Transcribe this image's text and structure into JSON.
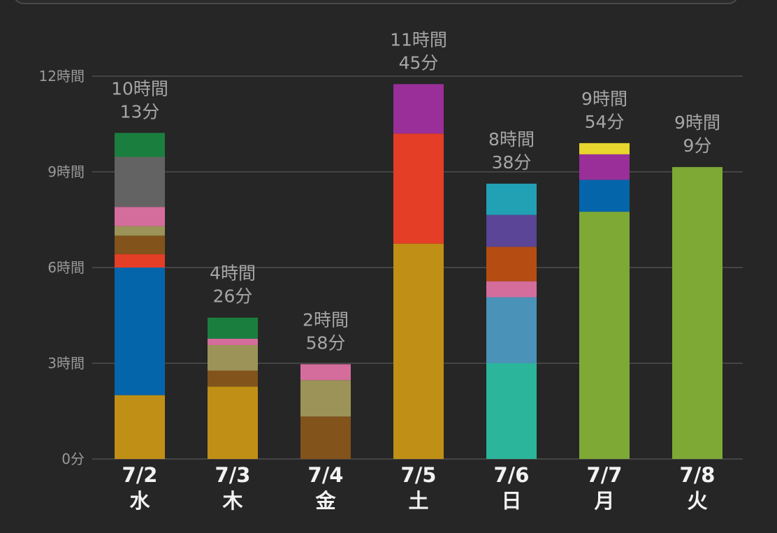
{
  "chart_data": {
    "type": "bar",
    "stacked": true,
    "y_unit": "hours",
    "ylim": [
      0,
      12
    ],
    "yticks": [
      {
        "value": 0,
        "label": "0分"
      },
      {
        "value": 3,
        "label": "3時間"
      },
      {
        "value": 6,
        "label": "6時間"
      },
      {
        "value": 9,
        "label": "9時間"
      },
      {
        "value": 12,
        "label": "12時間"
      }
    ],
    "grid": true,
    "categories": [
      {
        "date": "7/2",
        "day": "水",
        "total_line1": "10時間",
        "total_line2": "13分",
        "segments": [
          {
            "value": 2.0,
            "color": "#c08f15"
          },
          {
            "value": 4.0,
            "color": "#0565ab"
          },
          {
            "value": 0.42,
            "color": "#e53e26"
          },
          {
            "value": 0.58,
            "color": "#82531b"
          },
          {
            "value": 0.3,
            "color": "#9b9358"
          },
          {
            "value": 0.6,
            "color": "#d46d9c"
          },
          {
            "value": 1.57,
            "color": "#636363"
          },
          {
            "value": 0.75,
            "color": "#1a7f3e"
          }
        ]
      },
      {
        "date": "7/3",
        "day": "木",
        "total_line1": "4時間",
        "total_line2": "26分",
        "segments": [
          {
            "value": 2.27,
            "color": "#c08f15"
          },
          {
            "value": 0.5,
            "color": "#82531b"
          },
          {
            "value": 0.8,
            "color": "#9b9358"
          },
          {
            "value": 0.2,
            "color": "#d46d9c"
          },
          {
            "value": 0.66,
            "color": "#1a7f3e"
          }
        ]
      },
      {
        "date": "7/4",
        "day": "金",
        "total_line1": "2時間",
        "total_line2": "58分",
        "segments": [
          {
            "value": 1.33,
            "color": "#82531b"
          },
          {
            "value": 1.14,
            "color": "#9b9358"
          },
          {
            "value": 0.5,
            "color": "#d46d9c"
          }
        ]
      },
      {
        "date": "7/5",
        "day": "土",
        "total_line1": "11時間",
        "total_line2": "45分",
        "segments": [
          {
            "value": 6.75,
            "color": "#c08f15"
          },
          {
            "value": 3.45,
            "color": "#e53e26"
          },
          {
            "value": 1.55,
            "color": "#9a2f9a"
          }
        ]
      },
      {
        "date": "7/6",
        "day": "日",
        "total_line1": "8時間",
        "total_line2": "38分",
        "segments": [
          {
            "value": 3.0,
            "color": "#2bb59a"
          },
          {
            "value": 2.07,
            "color": "#4a92b8"
          },
          {
            "value": 0.5,
            "color": "#d46d9c"
          },
          {
            "value": 1.08,
            "color": "#b54d12"
          },
          {
            "value": 1.0,
            "color": "#5a4596"
          },
          {
            "value": 0.98,
            "color": "#22a0b4"
          }
        ]
      },
      {
        "date": "7/7",
        "day": "月",
        "total_line1": "9時間",
        "total_line2": "54分",
        "segments": [
          {
            "value": 7.75,
            "color": "#7ea935"
          },
          {
            "value": 1.0,
            "color": "#0565ab"
          },
          {
            "value": 0.8,
            "color": "#9a2f9a"
          },
          {
            "value": 0.35,
            "color": "#e8d52d"
          }
        ]
      },
      {
        "date": "7/8",
        "day": "火",
        "total_line1": "9時間",
        "total_line2": "9分",
        "segments": [
          {
            "value": 9.15,
            "color": "#7ea935"
          }
        ]
      }
    ]
  }
}
